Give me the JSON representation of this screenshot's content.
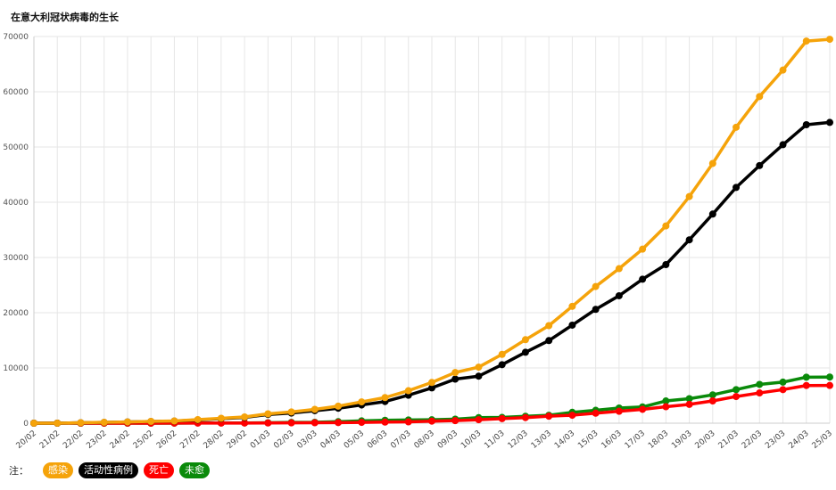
{
  "chart_data": {
    "type": "line",
    "title": "在意大利冠状病毒的生长",
    "xlabel": "",
    "ylabel": "",
    "ylim": [
      0,
      70000
    ],
    "yticks": [
      "0",
      "10000",
      "20000",
      "30000",
      "40000",
      "50000",
      "60000",
      "70000"
    ],
    "grid": true,
    "legend_position": "bottom-left",
    "categories": [
      "20/02",
      "21/02",
      "22/02",
      "23/02",
      "24/02",
      "25/02",
      "26/02",
      "27/02",
      "28/02",
      "29/02",
      "01/03",
      "02/03",
      "03/03",
      "04/03",
      "05/03",
      "06/03",
      "07/03",
      "08/03",
      "09/03",
      "10/03",
      "11/03",
      "12/03",
      "13/03",
      "14/03",
      "15/03",
      "16/03",
      "17/03",
      "18/03",
      "19/03",
      "20/03",
      "21/03",
      "22/03",
      "23/03",
      "24/03",
      "25/03"
    ],
    "series": [
      {
        "name": "感染",
        "color": "#f5a30a",
        "values": [
          3,
          3,
          79,
          157,
          229,
          322,
          400,
          650,
          888,
          1128,
          1694,
          2036,
          2502,
          3089,
          3858,
          4636,
          5883,
          7375,
          9172,
          10149,
          12462,
          15113,
          17660,
          21157,
          24747,
          27980,
          31506,
          35713,
          41035,
          47021,
          53578,
          59138,
          63927,
          69176,
          69500
        ]
      },
      {
        "name": "活动性病例",
        "color": "#000000",
        "values": [
          3,
          3,
          76,
          150,
          221,
          311,
          385,
          588,
          821,
          1049,
          1577,
          1835,
          2263,
          2706,
          3296,
          3916,
          5061,
          6387,
          7985,
          8514,
          10590,
          12839,
          14955,
          17750,
          20603,
          23073,
          26062,
          28710,
          33190,
          37860,
          42681,
          46638,
          50418,
          54030,
          54450
        ]
      },
      {
        "name": "死亡",
        "color": "#ff0000",
        "values": [
          0,
          0,
          2,
          3,
          7,
          10,
          12,
          17,
          21,
          29,
          34,
          52,
          79,
          107,
          148,
          197,
          233,
          366,
          463,
          631,
          827,
          1016,
          1266,
          1441,
          1809,
          2158,
          2503,
          2978,
          3405,
          4032,
          4825,
          5476,
          6077,
          6820,
          6830
        ]
      },
      {
        "name": "未愈",
        "color": "#0a8a0a",
        "values": [
          0,
          0,
          1,
          2,
          1,
          1,
          3,
          45,
          46,
          50,
          83,
          149,
          160,
          276,
          414,
          523,
          589,
          622,
          724,
          1004,
          1045,
          1258,
          1439,
          1966,
          2335,
          2749,
          2941,
          4025,
          4440,
          5129,
          6072,
          7024,
          7432,
          8326,
          8350
        ]
      }
    ]
  },
  "legend": {
    "prefix": "注："
  }
}
